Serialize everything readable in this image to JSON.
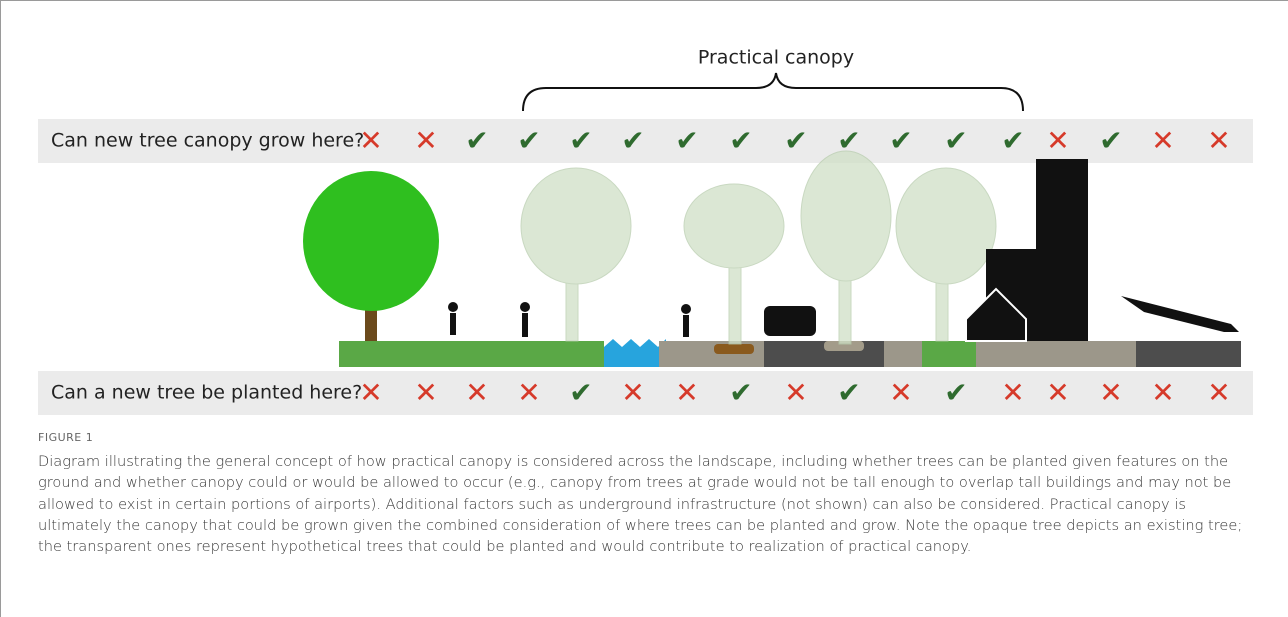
{
  "figure": {
    "bracket_label": "Practical canopy",
    "rows": [
      {
        "question": "Can new tree canopy grow here?",
        "marks": [
          "✕",
          "✕",
          "✔",
          "✔",
          "✔",
          "✔",
          "✔",
          "✔",
          "✔",
          "✔",
          "✔",
          "✔",
          "✔",
          "✕",
          "✔",
          "✕",
          "✕"
        ]
      },
      {
        "question": "Can a new tree be planted here?",
        "marks": [
          "✕",
          "✕",
          "✕",
          "✕",
          "✔",
          "✕",
          "✕",
          "✔",
          "✕",
          "✔",
          "✕",
          "✔",
          "✕",
          "✕",
          "✕",
          "✕",
          "✕"
        ]
      }
    ],
    "caption_label": "FIGURE 1",
    "caption": "Diagram illustrating the general concept of how practical canopy is considered across the landscape, including whether trees can be planted given features on the ground and whether canopy could or would be allowed to occur (e.g., canopy from trees at grade would not be tall enough to overlap tall buildings and may not be allowed to exist in certain portions of airports). Additional factors such as underground infrastructure (not shown) can also be considered. Practical canopy is ultimately the canopy that could be grown given the combined consideration of where trees can be planted and grow. Note the opaque tree depicts an existing tree; the transparent ones represent hypothetical trees that could be planted and would contribute to realization of practical canopy."
  }
}
